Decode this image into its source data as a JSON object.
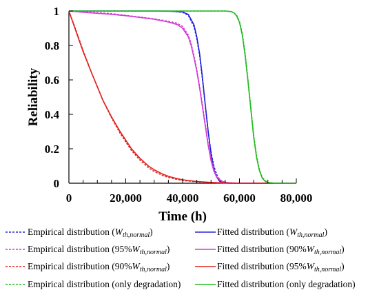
{
  "chart_data": {
    "type": "line",
    "xlabel": "Time (h)",
    "ylabel": "Reliability",
    "xlim": [
      0,
      80000
    ],
    "ylim": [
      0,
      1
    ],
    "xticks": [
      0,
      20000,
      40000,
      60000,
      80000
    ],
    "xtick_labels": [
      "0",
      "20,000",
      "40,000",
      "60,000",
      "80,000"
    ],
    "yticks": [
      0,
      0.2,
      0.4,
      0.6,
      0.8,
      1
    ],
    "ytick_labels": [
      "0",
      "0.2",
      "0.4",
      "0.6",
      "0.8",
      "1"
    ],
    "grid": false,
    "legend_placement": "bottom",
    "series": [
      {
        "name": "Empirical distribution (W_th,normal)",
        "legend": {
          "prefix": "Empirical distribution (",
          "main": "W",
          "sub": "th,normal",
          "suffix": ")"
        },
        "color": "#2323d6",
        "style": "dashed",
        "x": [
          0,
          10000,
          20000,
          30000,
          36000,
          40000,
          42000,
          44000,
          45000,
          46000,
          47000,
          48000,
          49000,
          50000,
          51000,
          52000,
          53000,
          54000,
          56000,
          60000,
          80000
        ],
        "y": [
          1,
          1,
          1,
          1,
          0.999,
          0.993,
          0.975,
          0.91,
          0.84,
          0.74,
          0.6,
          0.45,
          0.3,
          0.18,
          0.1,
          0.05,
          0.02,
          0.01,
          0.002,
          0,
          0
        ]
      },
      {
        "name": "Fitted distribution (W_th,normal)",
        "legend": {
          "prefix": "Fitted distribution (",
          "main": "W",
          "sub": "th,normal",
          "suffix": ")"
        },
        "color": "#2323d6",
        "style": "solid",
        "x": [
          0,
          10000,
          20000,
          30000,
          36000,
          40000,
          42000,
          44000,
          45000,
          46000,
          47000,
          48000,
          49000,
          50000,
          51000,
          52000,
          53000,
          54000,
          56000,
          60000,
          80000
        ],
        "y": [
          1,
          1,
          1,
          1,
          0.999,
          0.995,
          0.98,
          0.92,
          0.85,
          0.75,
          0.61,
          0.45,
          0.3,
          0.17,
          0.08,
          0.035,
          0.012,
          0.004,
          0,
          0,
          0
        ]
      },
      {
        "name": "Empirical distribution (95%W_th,normal)",
        "legend": {
          "prefix": "Empirical distribution (95%",
          "main": "W",
          "sub": "th,normal",
          "suffix": ")"
        },
        "color": "#d43ad4",
        "style": "dashed",
        "x": [
          0,
          5000,
          10000,
          15000,
          20000,
          25000,
          30000,
          35000,
          38000,
          40000,
          42000,
          43000,
          44000,
          45000,
          46000,
          47000,
          48000,
          49000,
          50000,
          51000,
          52000,
          54000,
          56000,
          60000,
          80000
        ],
        "y": [
          1,
          0.995,
          0.99,
          0.985,
          0.975,
          0.965,
          0.955,
          0.94,
          0.93,
          0.91,
          0.86,
          0.81,
          0.74,
          0.66,
          0.56,
          0.45,
          0.34,
          0.23,
          0.14,
          0.08,
          0.04,
          0.01,
          0.003,
          0,
          0
        ]
      },
      {
        "name": "Fitted distribution (90%W_th,normal)",
        "legend": {
          "prefix": "Fitted distribution (90%",
          "main": "W",
          "sub": "th,normal",
          "suffix": ")"
        },
        "color": "#d43ad4",
        "style": "solid",
        "x": [
          0,
          5000,
          10000,
          15000,
          20000,
          25000,
          30000,
          35000,
          38000,
          40000,
          42000,
          43000,
          44000,
          45000,
          46000,
          47000,
          48000,
          49000,
          50000,
          51000,
          52000,
          54000,
          56000,
          60000,
          80000
        ],
        "y": [
          1,
          0.993,
          0.987,
          0.981,
          0.973,
          0.963,
          0.952,
          0.936,
          0.922,
          0.9,
          0.85,
          0.8,
          0.73,
          0.65,
          0.55,
          0.44,
          0.33,
          0.22,
          0.13,
          0.07,
          0.035,
          0.008,
          0.002,
          0,
          0
        ]
      },
      {
        "name": "Empirical distribution (90%W_th,normal)",
        "legend": {
          "prefix": "Empirical distribution (90%",
          "main": "W",
          "sub": "th,normal",
          "suffix": ")"
        },
        "color": "#e0201c",
        "style": "dashed",
        "x": [
          0,
          2000,
          5000,
          8000,
          10000,
          12000,
          15000,
          18000,
          20000,
          22000,
          25000,
          28000,
          30000,
          33000,
          35000,
          38000,
          40000,
          45000,
          50000,
          55000,
          60000,
          80000
        ],
        "y": [
          1,
          0.91,
          0.77,
          0.64,
          0.56,
          0.48,
          0.38,
          0.29,
          0.24,
          0.19,
          0.135,
          0.09,
          0.068,
          0.045,
          0.034,
          0.022,
          0.016,
          0.008,
          0.004,
          0.001,
          0,
          0
        ]
      },
      {
        "name": "Fitted distribution (95%W_th,normal)",
        "legend": {
          "prefix": "Fitted distribution (95%",
          "main": "W",
          "sub": "th,normal",
          "suffix": ")"
        },
        "color": "#e0201c",
        "style": "solid",
        "x": [
          0,
          2000,
          5000,
          8000,
          10000,
          12000,
          15000,
          18000,
          20000,
          22000,
          25000,
          28000,
          30000,
          33000,
          35000,
          38000,
          40000,
          45000,
          50000,
          55000,
          60000,
          80000
        ],
        "y": [
          1,
          0.905,
          0.765,
          0.64,
          0.56,
          0.48,
          0.385,
          0.3,
          0.25,
          0.2,
          0.145,
          0.1,
          0.078,
          0.053,
          0.04,
          0.027,
          0.02,
          0.01,
          0.005,
          0.002,
          0,
          0
        ]
      },
      {
        "name": "Empirical distribution (only degradation)",
        "legend": {
          "prefix": "Empirical distribution (only degradation)",
          "main": "",
          "sub": "",
          "suffix": ""
        },
        "color": "#22bb22",
        "style": "dashed",
        "x": [
          0,
          50000,
          55000,
          57000,
          58000,
          59000,
          60000,
          61000,
          62000,
          63000,
          64000,
          65000,
          66000,
          67000,
          68000,
          69000,
          70000,
          72000,
          75000,
          80000
        ],
        "y": [
          1,
          1,
          1,
          0.998,
          0.99,
          0.975,
          0.94,
          0.87,
          0.75,
          0.6,
          0.44,
          0.28,
          0.16,
          0.08,
          0.035,
          0.015,
          0.005,
          0.001,
          0,
          0
        ]
      },
      {
        "name": "Fitted distribution (only degradation)",
        "legend": {
          "prefix": "Fitted distribution (only degradation)",
          "main": "",
          "sub": "",
          "suffix": ""
        },
        "color": "#22bb22",
        "style": "solid",
        "x": [
          0,
          50000,
          55000,
          57000,
          58000,
          59000,
          60000,
          61000,
          62000,
          63000,
          64000,
          65000,
          66000,
          67000,
          68000,
          69000,
          70000,
          72000,
          75000,
          80000
        ],
        "y": [
          1,
          1,
          1,
          0.997,
          0.99,
          0.972,
          0.935,
          0.86,
          0.74,
          0.59,
          0.43,
          0.27,
          0.15,
          0.075,
          0.03,
          0.012,
          0.004,
          0.001,
          0,
          0
        ]
      }
    ]
  }
}
